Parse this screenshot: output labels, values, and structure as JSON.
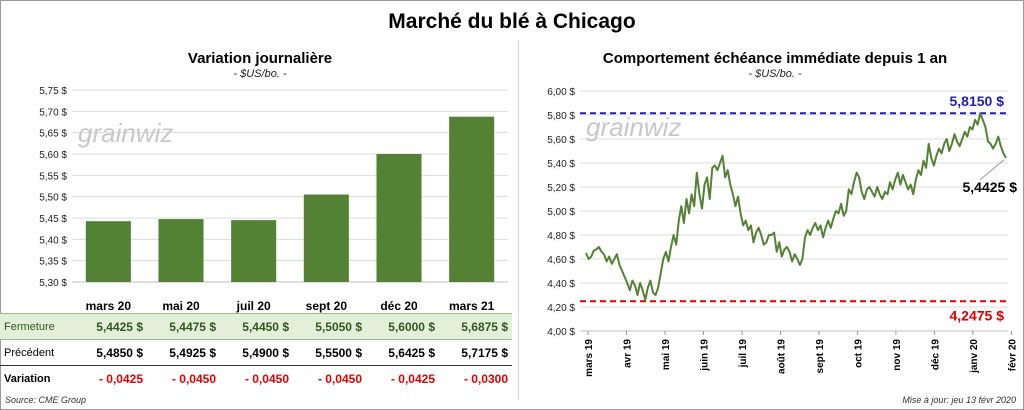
{
  "title": "Marché du blé à Chicago",
  "left": {
    "title": "Variation journalière",
    "subtitle": "- $US/bo. -",
    "watermark": "grainwiz",
    "bar_color": "#548235",
    "chart_data": {
      "type": "bar",
      "categories": [
        "mars 20",
        "mai 20",
        "juil 20",
        "sept 20",
        "déc 20",
        "mars 21"
      ],
      "values": [
        5.4425,
        5.4475,
        5.445,
        5.505,
        5.6,
        5.6875
      ],
      "ylim": [
        5.3,
        5.75
      ],
      "yticks": [
        "5,30 $",
        "5,35 $",
        "5,40 $",
        "5,45 $",
        "5,50 $",
        "5,55 $",
        "5,60 $",
        "5,65 $",
        "5,70 $",
        "5,75 $"
      ],
      "grid": true
    },
    "table": {
      "rows": [
        {
          "label": "Fermeture",
          "values": [
            "5,4425  $",
            "5,4475  $",
            "5,4450  $",
            "5,5050  $",
            "5,6000  $",
            "5,6875  $"
          ]
        },
        {
          "label": "Précédent",
          "values": [
            "5,4850  $",
            "5,4925  $",
            "5,4900  $",
            "5,5500  $",
            "5,6425  $",
            "5,7175  $"
          ]
        },
        {
          "label": "Variation",
          "values": [
            "- 0,0425",
            "- 0,0450",
            "- 0,0450",
            "- 0,0450",
            "- 0,0425",
            "- 0,0300"
          ]
        }
      ]
    },
    "source": "Source: CME Group"
  },
  "right": {
    "title": "Comportement  échéance immédiate depuis 1 an",
    "subtitle": "- $US/bo. -",
    "watermark": "grainwiz",
    "line_color": "#548235",
    "high_color": "#1f1fb4",
    "low_color": "#e00000",
    "high_label": "5,8150 $",
    "low_label": "4,2475 $",
    "last_label": "5,4425 $",
    "chart_data": {
      "type": "line",
      "ylim": [
        4.0,
        6.0
      ],
      "yticks": [
        "4,00 $",
        "4,20 $",
        "4,40 $",
        "4,60 $",
        "4,80 $",
        "5,00 $",
        "5,20 $",
        "5,40 $",
        "5,60 $",
        "5,80 $",
        "6,00 $"
      ],
      "xticks": [
        "mars 19",
        "avr 19",
        "mai 19",
        "juin 19",
        "juil 19",
        "août 19",
        "sept 19",
        "oct 19",
        "nov 19",
        "déc 19",
        "janv 20",
        "févr 20"
      ],
      "high": 5.815,
      "low": 4.2475,
      "last": 5.4425,
      "values": [
        4.65,
        4.6,
        4.62,
        4.67,
        4.68,
        4.7,
        4.66,
        4.64,
        4.58,
        4.62,
        4.56,
        4.6,
        4.64,
        4.55,
        4.5,
        4.45,
        4.4,
        4.34,
        4.42,
        4.38,
        4.3,
        4.4,
        4.34,
        4.26,
        4.36,
        4.42,
        4.32,
        4.3,
        4.36,
        4.48,
        4.6,
        4.66,
        4.58,
        4.7,
        4.8,
        4.72,
        4.92,
        5.04,
        4.9,
        5.1,
        4.98,
        5.14,
        5.04,
        5.32,
        5.14,
        5.02,
        5.22,
        5.28,
        5.1,
        5.36,
        5.38,
        5.34,
        5.4,
        5.46,
        5.28,
        5.34,
        5.22,
        5.14,
        5.04,
        5.12,
        4.98,
        4.88,
        4.92,
        4.84,
        4.88,
        4.74,
        4.82,
        4.86,
        4.8,
        4.72,
        4.74,
        4.8,
        4.8,
        4.82,
        4.66,
        4.74,
        4.62,
        4.68,
        4.7,
        4.66,
        4.58,
        4.64,
        4.6,
        4.55,
        4.6,
        4.78,
        4.84,
        4.8,
        4.86,
        4.9,
        4.84,
        4.88,
        4.78,
        4.86,
        4.92,
        4.86,
        4.94,
        5.0,
        4.98,
        5.06,
        4.96,
        5.0,
        5.18,
        5.14,
        5.24,
        5.32,
        5.28,
        5.16,
        5.1,
        5.18,
        5.2,
        5.16,
        5.12,
        5.2,
        5.14,
        5.1,
        5.16,
        5.14,
        5.24,
        5.18,
        5.26,
        5.32,
        5.22,
        5.3,
        5.24,
        5.18,
        5.22,
        5.14,
        5.26,
        5.34,
        5.3,
        5.42,
        5.36,
        5.56,
        5.44,
        5.38,
        5.46,
        5.52,
        5.48,
        5.56,
        5.6,
        5.5,
        5.56,
        5.64,
        5.58,
        5.54,
        5.6,
        5.66,
        5.62,
        5.7,
        5.68,
        5.76,
        5.72,
        5.815,
        5.76,
        5.7,
        5.58,
        5.56,
        5.52,
        5.56,
        5.62,
        5.54,
        5.48,
        5.4425
      ]
    },
    "update": "Mise à jour: jeu 13 févr 2020"
  }
}
